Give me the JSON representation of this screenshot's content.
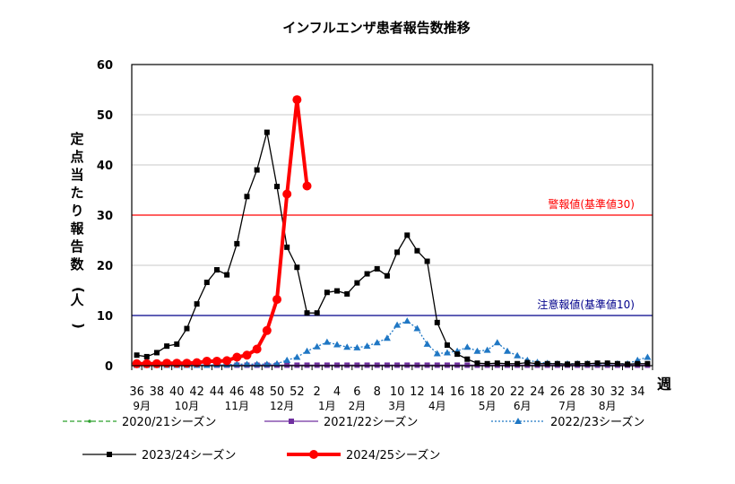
{
  "chart_data": {
    "type": "line",
    "title": "インフルエンザ患者報告数推移",
    "ylabel": "定点当たり報告数(人)",
    "xlabel": "週",
    "ylim": [
      0,
      60
    ],
    "yticks": [
      0,
      10,
      20,
      30,
      40,
      50,
      60
    ],
    "grid": true,
    "legend_position": "bottom",
    "weeks": [
      36,
      37,
      38,
      39,
      40,
      41,
      42,
      43,
      44,
      45,
      46,
      47,
      48,
      49,
      50,
      51,
      52,
      1,
      2,
      3,
      4,
      5,
      6,
      7,
      8,
      9,
      10,
      11,
      12,
      13,
      14,
      15,
      16,
      17,
      18,
      19,
      20,
      21,
      22,
      23,
      24,
      25,
      26,
      27,
      28,
      29,
      30,
      31,
      32,
      33,
      34,
      35
    ],
    "week_tick_labels": [
      "36",
      "38",
      "40",
      "42",
      "44",
      "46",
      "48",
      "50",
      "52",
      "2",
      "4",
      "6",
      "8",
      "10",
      "12",
      "14",
      "16",
      "18",
      "20",
      "22",
      "24",
      "26",
      "28",
      "30",
      "32",
      "34"
    ],
    "month_labels": [
      {
        "label": "9月",
        "week": 36.5
      },
      {
        "label": "10月",
        "week": 41
      },
      {
        "label": "11月",
        "week": 46
      },
      {
        "label": "12月",
        "week": 50.5
      },
      {
        "label": "1月",
        "week": 3
      },
      {
        "label": "2月",
        "week": 6
      },
      {
        "label": "3月",
        "week": 10
      },
      {
        "label": "4月",
        "week": 14
      },
      {
        "label": "5月",
        "week": 19
      },
      {
        "label": "6月",
        "week": 22.5
      },
      {
        "label": "7月",
        "week": 27
      },
      {
        "label": "8月",
        "week": 31
      }
    ],
    "thresholds": [
      {
        "label": "警報値(基準値30)",
        "value": 30,
        "color": "#ff0000"
      },
      {
        "label": "注意報値(基準値10)",
        "value": 10,
        "color": "#00008b"
      }
    ],
    "series": [
      {
        "name": "2020/21シーズン",
        "color": "#2ca02c",
        "style": "dashed",
        "marker": "dot",
        "values": [
          0,
          0,
          0,
          0,
          0,
          0,
          0,
          0,
          0,
          0,
          0,
          0,
          0,
          0,
          0,
          0,
          0,
          0,
          0,
          0,
          0,
          0,
          0,
          0,
          0,
          0,
          0,
          0,
          0,
          0,
          0,
          0,
          0,
          0,
          0,
          0,
          0,
          0,
          0,
          0,
          0,
          0,
          0,
          0,
          0,
          0,
          0,
          0,
          0,
          0,
          0,
          0
        ]
      },
      {
        "name": "2021/22シーズン",
        "color": "#7030a0",
        "style": "solid",
        "marker": "square",
        "values": [
          0.1,
          0.1,
          0.1,
          0.1,
          0.1,
          0.1,
          0.1,
          0.1,
          0.1,
          0.1,
          0.1,
          0.1,
          0.1,
          0.1,
          0.1,
          0.1,
          0.1,
          0.1,
          0.1,
          0.1,
          0.1,
          0.1,
          0.1,
          0.1,
          0.1,
          0.1,
          0.1,
          0.1,
          0.1,
          0.1,
          0.1,
          0.1,
          0.1,
          0.1,
          0.1,
          0.1,
          0.1,
          0.1,
          0.1,
          0.1,
          0.1,
          0.1,
          0.1,
          0.1,
          0.1,
          0.1,
          0.1,
          0.1,
          0.1,
          0.1,
          0.1,
          0.1
        ]
      },
      {
        "name": "2022/23シーズン",
        "color": "#1f77c4",
        "style": "dotted",
        "marker": "triangle",
        "values": [
          0.1,
          0.1,
          0.1,
          0.1,
          0.1,
          0.1,
          0.1,
          0.1,
          0.2,
          0.2,
          0.3,
          0.3,
          0.3,
          0.3,
          0.4,
          1.1,
          1.7,
          2.9,
          3.8,
          4.7,
          4.2,
          3.7,
          3.6,
          3.9,
          4.6,
          5.5,
          8.1,
          8.9,
          7.4,
          4.3,
          2.4,
          2.6,
          2.9,
          3.7,
          2.9,
          3.1,
          4.6,
          2.9,
          2.0,
          1.1,
          0.7,
          0.5,
          0.4,
          0.4,
          0.4,
          0.4,
          0.4,
          0.4,
          0.4,
          0.4,
          1.1,
          1.7
        ]
      },
      {
        "name": "2023/24シーズン",
        "color": "#000000",
        "style": "solid",
        "marker": "square",
        "values": [
          2.1,
          1.8,
          2.6,
          3.9,
          4.3,
          7.4,
          12.3,
          16.6,
          19.1,
          18.1,
          24.3,
          33.7,
          39.0,
          46.5,
          35.7,
          23.6,
          19.6,
          10.5,
          10.5,
          14.6,
          14.9,
          14.3,
          16.5,
          18.3,
          19.3,
          17.9,
          22.6,
          26.0,
          22.9,
          20.8,
          8.6,
          4.1,
          2.3,
          1.3,
          0.5,
          0.4,
          0.5,
          0.4,
          0.4,
          0.6,
          0.4,
          0.4,
          0.4,
          0.3,
          0.4,
          0.4,
          0.5,
          0.5,
          0.4,
          0.3,
          0.4,
          0.4
        ]
      },
      {
        "name": "2024/25シーズン",
        "color": "#ff0000",
        "style": "bold",
        "marker": "circle",
        "values": [
          0.4,
          0.4,
          0.4,
          0.5,
          0.5,
          0.5,
          0.6,
          0.9,
          0.9,
          1.0,
          1.7,
          2.1,
          3.3,
          7.0,
          13.2,
          34.2,
          53.0,
          35.8
        ]
      }
    ]
  }
}
